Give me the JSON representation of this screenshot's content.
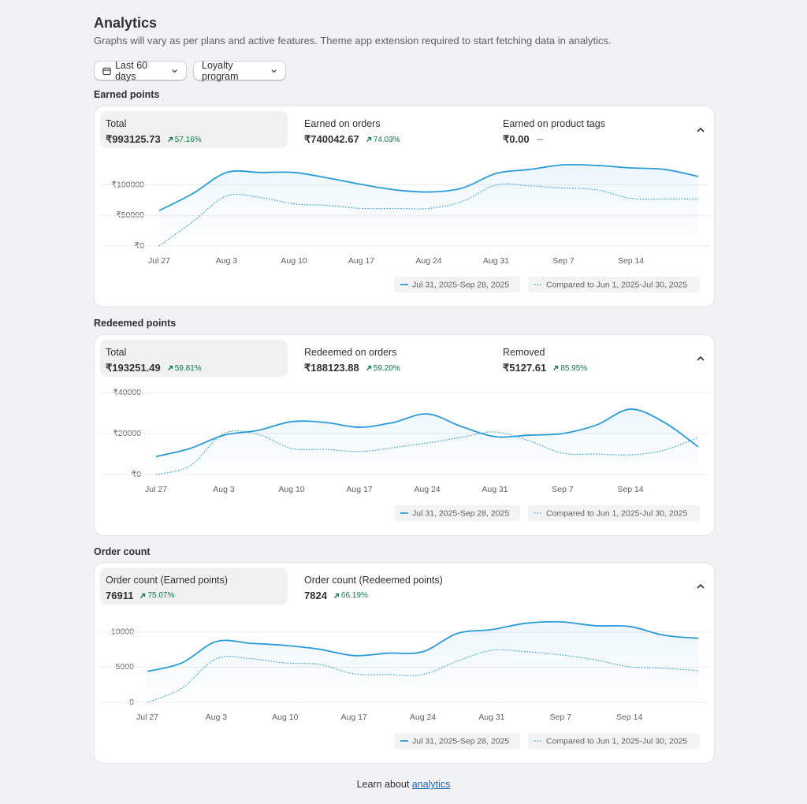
{
  "header": {
    "title": "Analytics",
    "subtitle": "Graphs will vary as per plans and active features. Theme app extension required to start fetching data in analytics."
  },
  "filters": [
    "Last 60 days",
    "Loyalty program"
  ],
  "sections": [
    {
      "title": "Earned points",
      "metrics": [
        {
          "label": "Total",
          "value": "₹993125.73",
          "change": "57.16%"
        },
        {
          "label": "Earned on orders",
          "value": "₹740042.67",
          "change": "74.03%"
        },
        {
          "label": "Earned on product tags",
          "value": "₹0.00"
        }
      ],
      "chart_data": {
        "type": "line",
        "categories": [
          "Jul 27",
          null,
          "Aug 3",
          null,
          "Aug 10",
          null,
          "Aug 17",
          null,
          "Aug 24",
          null,
          "Aug 31",
          null,
          "Sep 7",
          null,
          "Sep 14",
          null,
          null
        ],
        "ylim": [
          0,
          150000
        ],
        "yticks": [
          {
            "value": 0,
            "label": "₹0"
          },
          {
            "value": 50000,
            "label": "₹50000"
          },
          {
            "value": 100000,
            "label": "₹100000"
          }
        ],
        "grid": true,
        "series": [
          {
            "name": "Jul 31, 2025-Sep 28, 2025",
            "color": "#2a9bd6",
            "values": [
              58000,
              86000,
              120500,
              120500,
              120500,
              111500,
              101000,
              92000,
              88500,
              95000,
              119000,
              125500,
              133000,
              132000,
              128000,
              125500,
              114000
            ]
          },
          {
            "name": "Compared to Jun 1, 2025-Jul 30, 2025",
            "color": "#2a9bd6",
            "dashed": true,
            "values": [
              0,
              40000,
              82000,
              79500,
              69000,
              66500,
              61500,
              61500,
              61500,
              73000,
              100000,
              98500,
              95000,
              92000,
              78000,
              77000,
              77000
            ]
          }
        ]
      }
    },
    {
      "title": "Redeemed points",
      "metrics": [
        {
          "label": "Total",
          "value": "₹193251.49",
          "change": "59.81%"
        },
        {
          "label": "Redeemed on orders",
          "value": "₹188123.88",
          "change": "59.20%"
        },
        {
          "label": "Removed",
          "value": "₹5127.61",
          "change": "85.95%"
        }
      ],
      "chart_data": {
        "type": "line",
        "categories": [
          "Jul 27",
          null,
          "Aug 3",
          null,
          "Aug 10",
          null,
          "Aug 17",
          null,
          "Aug 24",
          null,
          "Aug 31",
          null,
          "Sep 7",
          null,
          "Sep 14",
          null,
          null
        ],
        "ylim": [
          0,
          40000
        ],
        "yticks": [
          {
            "value": 0,
            "label": "₹0"
          },
          {
            "value": 20000,
            "label": "₹20000"
          },
          {
            "value": 40000,
            "label": "₹40000"
          }
        ],
        "grid": true,
        "series": [
          {
            "name": "Jul 31, 2025-Sep 28, 2025",
            "color": "#2a9bd6",
            "values": [
              8800,
              12700,
              19200,
              21500,
              25800,
              25400,
              23100,
              25400,
              29600,
              23500,
              18500,
              19200,
              20000,
              24200,
              31900,
              25400,
              13500
            ]
          },
          {
            "name": "Compared to Jun 1, 2025-Jul 30, 2025",
            "color": "#2a9bd6",
            "dashed": true,
            "values": [
              0,
              4200,
              20000,
              19600,
              12700,
              12300,
              11200,
              13100,
              15400,
              18100,
              20800,
              16500,
              10400,
              10000,
              9600,
              11900,
              18100
            ]
          }
        ]
      }
    },
    {
      "title": "Order count",
      "metrics": [
        {
          "label": "Order count (Earned points)",
          "value": "76911",
          "change": "75.07%"
        },
        {
          "label": "Order count (Redeemed points)",
          "value": "7824",
          "change": "66.19%"
        }
      ],
      "chart_data": {
        "type": "line",
        "categories": [
          "Jul 27",
          null,
          "Aug 3",
          null,
          "Aug 10",
          null,
          "Aug 17",
          null,
          "Aug 24",
          null,
          "Aug 31",
          null,
          "Sep 7",
          null,
          "Sep 14",
          null,
          null
        ],
        "ylim": [
          0,
          12000
        ],
        "yticks": [
          0,
          5000,
          10000
        ],
        "grid": true,
        "series": [
          {
            "name": "Jul 31, 2025-Sep 28, 2025",
            "color": "#2a9bd6",
            "values": [
              4400,
              5600,
              8650,
              8400,
              8100,
              7550,
              6650,
              7000,
              7200,
              9800,
              10350,
              11250,
              11450,
              10900,
              10800,
              9550,
              9100
            ]
          },
          {
            "name": "Compared to Jun 1, 2025-Jul 30, 2025",
            "color": "#2a9bd6",
            "dashed": true,
            "values": [
              0,
              2000,
              6200,
              6200,
              5600,
              5400,
              4050,
              3950,
              3950,
              5850,
              7400,
              7200,
              6750,
              6050,
              5050,
              4850,
              4500
            ]
          }
        ]
      }
    }
  ],
  "footer": {
    "text": "Learn about",
    "link": "analytics"
  }
}
